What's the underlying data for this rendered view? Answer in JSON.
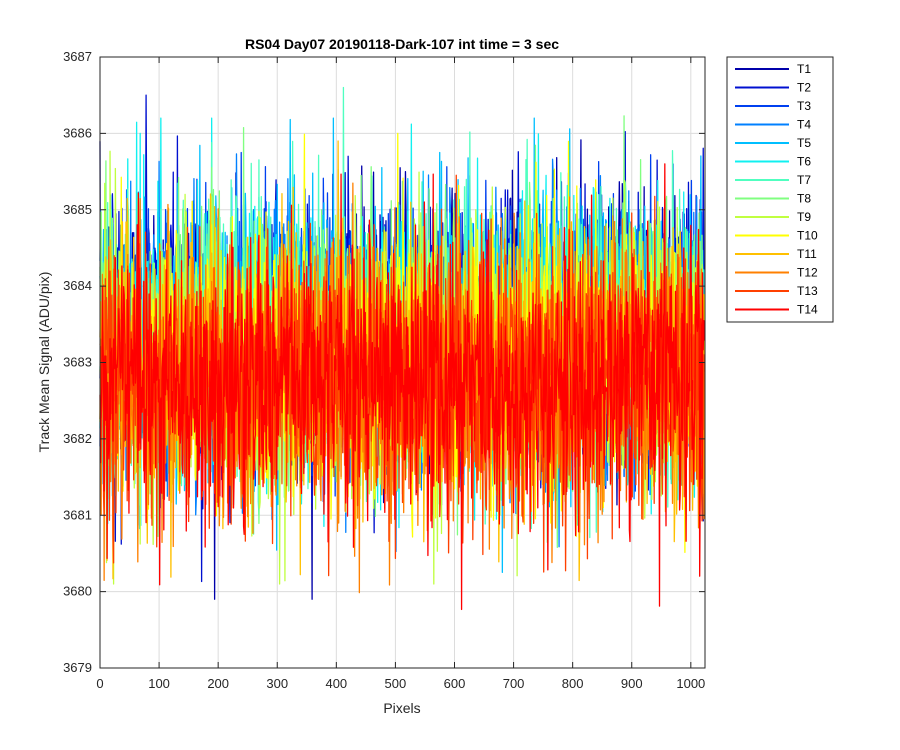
{
  "chart_data": {
    "type": "line",
    "title": "RS04 Day07 20190118-Dark-107 int time = 3 sec",
    "xlabel": "Pixels",
    "ylabel": "Track Mean Signal (ADU/pix)",
    "xlim": [
      0,
      1024
    ],
    "ylim": [
      3679,
      3687
    ],
    "xticks": [
      0,
      100,
      200,
      300,
      400,
      500,
      600,
      700,
      800,
      900,
      1000
    ],
    "yticks": [
      3679,
      3680,
      3681,
      3682,
      3683,
      3684,
      3685,
      3686,
      3687
    ],
    "grid": true,
    "legend_position": "outside-top-right",
    "num_pixels": 1024,
    "series": [
      {
        "name": "T1",
        "color": "#0000AA",
        "mean": 3683.4,
        "std_approx": 1.0,
        "min_approx": 3679.9,
        "max_approx": 3686.6
      },
      {
        "name": "T2",
        "color": "#0010D0",
        "mean": 3683.4,
        "std_approx": 1.0,
        "min_approx": 3679.8,
        "max_approx": 3686.5
      },
      {
        "name": "T3",
        "color": "#0040F0",
        "mean": 3683.4,
        "std_approx": 1.0,
        "min_approx": 3680.0,
        "max_approx": 3686.4
      },
      {
        "name": "T4",
        "color": "#0080FF",
        "mean": 3683.3,
        "std_approx": 1.0,
        "min_approx": 3680.1,
        "max_approx": 3686.3
      },
      {
        "name": "T5",
        "color": "#00BFFF",
        "mean": 3683.3,
        "std_approx": 1.0,
        "min_approx": 3679.4,
        "max_approx": 3686.2
      },
      {
        "name": "T6",
        "color": "#10F0F0",
        "mean": 3683.3,
        "std_approx": 1.0,
        "min_approx": 3679.5,
        "max_approx": 3686.2
      },
      {
        "name": "T7",
        "color": "#50FFC0",
        "mean": 3683.2,
        "std_approx": 1.0,
        "min_approx": 3680.2,
        "max_approx": 3686.6
      },
      {
        "name": "T8",
        "color": "#80FF80",
        "mean": 3683.2,
        "std_approx": 1.0,
        "min_approx": 3680.3,
        "max_approx": 3686.5
      },
      {
        "name": "T9",
        "color": "#C0FF40",
        "mean": 3683.1,
        "std_approx": 1.0,
        "min_approx": 3680.1,
        "max_approx": 3686.4
      },
      {
        "name": "T10",
        "color": "#FFFF00",
        "mean": 3683.0,
        "std_approx": 1.0,
        "min_approx": 3680.0,
        "max_approx": 3686.0
      },
      {
        "name": "T11",
        "color": "#FFC000",
        "mean": 3682.9,
        "std_approx": 1.0,
        "min_approx": 3680.0,
        "max_approx": 3685.9
      },
      {
        "name": "T12",
        "color": "#FF8000",
        "mean": 3682.8,
        "std_approx": 1.0,
        "min_approx": 3679.4,
        "max_approx": 3685.8
      },
      {
        "name": "T13",
        "color": "#FF4000",
        "mean": 3682.7,
        "std_approx": 1.0,
        "min_approx": 3679.6,
        "max_approx": 3685.7
      },
      {
        "name": "T14",
        "color": "#FF0000",
        "mean": 3682.7,
        "std_approx": 1.0,
        "min_approx": 3679.4,
        "max_approx": 3685.6
      }
    ]
  }
}
